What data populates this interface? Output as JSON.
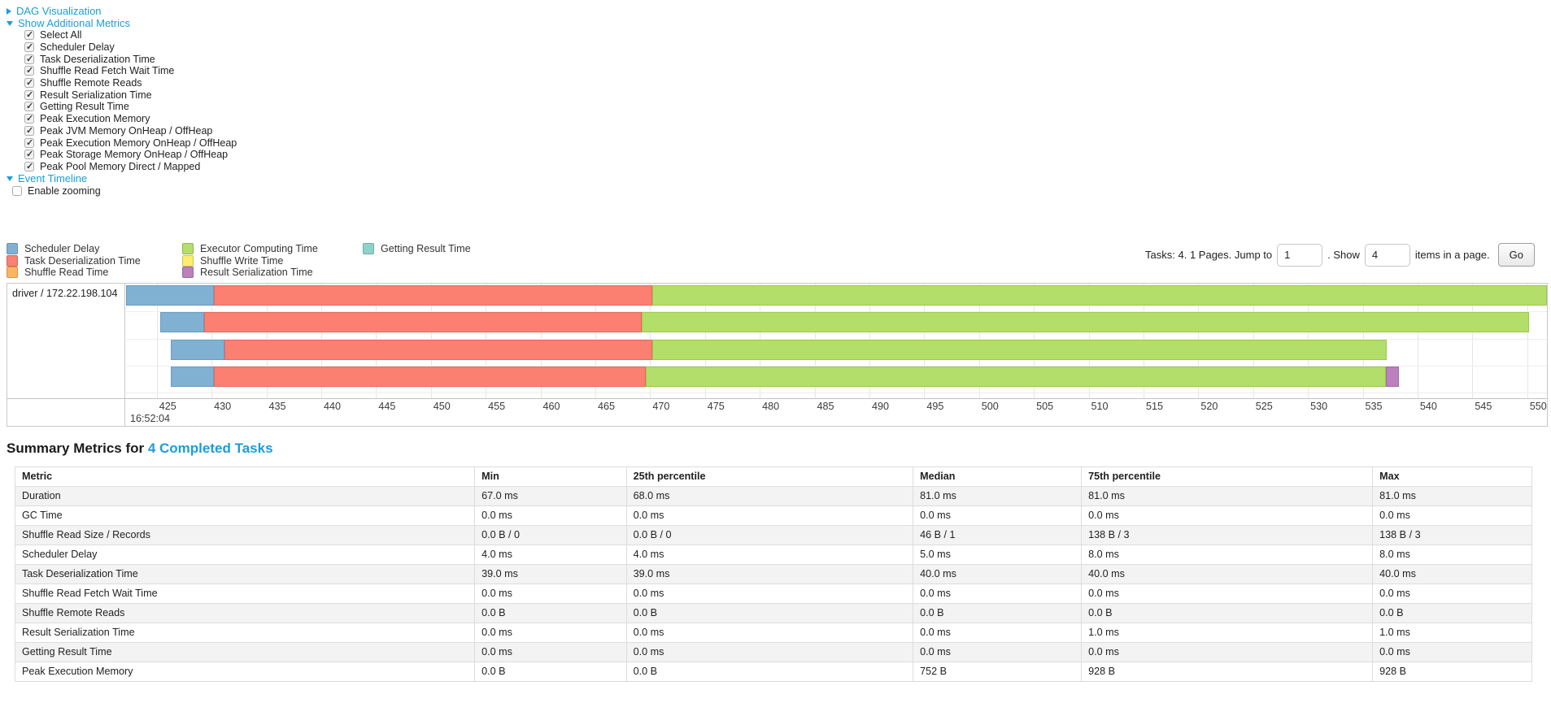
{
  "controls": {
    "dag_visualization": {
      "label": "DAG Visualization",
      "expanded": false
    },
    "show_additional_metrics": {
      "label": "Show Additional Metrics",
      "expanded": true
    },
    "metric_checkboxes": [
      {
        "label": "Select All",
        "checked": true
      },
      {
        "label": "Scheduler Delay",
        "checked": true
      },
      {
        "label": "Task Deserialization Time",
        "checked": true
      },
      {
        "label": "Shuffle Read Fetch Wait Time",
        "checked": true
      },
      {
        "label": "Shuffle Remote Reads",
        "checked": true
      },
      {
        "label": "Result Serialization Time",
        "checked": true
      },
      {
        "label": "Getting Result Time",
        "checked": true
      },
      {
        "label": "Peak Execution Memory",
        "checked": true
      },
      {
        "label": "Peak JVM Memory OnHeap / OffHeap",
        "checked": true
      },
      {
        "label": "Peak Execution Memory OnHeap / OffHeap",
        "checked": true
      },
      {
        "label": "Peak Storage Memory OnHeap / OffHeap",
        "checked": true
      },
      {
        "label": "Peak Pool Memory Direct / Mapped",
        "checked": true
      }
    ],
    "event_timeline": {
      "label": "Event Timeline",
      "expanded": true
    },
    "enable_zooming": {
      "label": "Enable zooming",
      "checked": false
    }
  },
  "legend": {
    "columns": [
      [
        {
          "label": "Scheduler Delay",
          "metric": "scheduler_delay"
        },
        {
          "label": "Task Deserialization Time",
          "metric": "task_deserialization"
        },
        {
          "label": "Shuffle Read Time",
          "metric": "shuffle_read"
        }
      ],
      [
        {
          "label": "Executor Computing Time",
          "metric": "executor_computing"
        },
        {
          "label": "Shuffle Write Time",
          "metric": "shuffle_write"
        },
        {
          "label": "Result Serialization Time",
          "metric": "result_serialization"
        }
      ],
      [
        {
          "label": "Getting Result Time",
          "metric": "getting_result"
        }
      ]
    ]
  },
  "pagination": {
    "tasks_text": "Tasks: 4. 1 Pages. Jump to",
    "jump_value": "1",
    "show_text": ". Show",
    "show_value": "4",
    "items_text": "items in a page.",
    "go_label": "Go"
  },
  "chart_data": {
    "type": "timeline",
    "group_label": "driver / 172.22.198.104",
    "time_label": "16:52:04",
    "axis": {
      "unit": "ms",
      "view_min": 422.2,
      "view_max": 551.8,
      "tick_min": 425,
      "tick_max": 550,
      "tick_step": 5
    },
    "colors": {
      "scheduler_delay": {
        "fill": "#80B1D3",
        "border": "#6A9CC2"
      },
      "task_deserialization": {
        "fill": "#FB8072",
        "border": "#E66A5D"
      },
      "shuffle_read": {
        "fill": "#FDB462",
        "border": "#E89F4C"
      },
      "executor_computing": {
        "fill": "#B3DE69",
        "border": "#9CC94F"
      },
      "shuffle_write": {
        "fill": "#FFED6F",
        "border": "#E3D156"
      },
      "result_serialization": {
        "fill": "#BC80BD",
        "border": "#A569A7"
      },
      "getting_result": {
        "fill": "#8DD3C7",
        "border": "#74BDB0"
      }
    },
    "tasks": [
      {
        "start": 422.2,
        "segments": [
          {
            "metric": "scheduler_delay",
            "end": 430.2
          },
          {
            "metric": "task_deserialization",
            "end": 470.2
          },
          {
            "metric": "executor_computing",
            "end": 551.8
          }
        ]
      },
      {
        "start": 425.3,
        "segments": [
          {
            "metric": "scheduler_delay",
            "end": 429.3
          },
          {
            "metric": "task_deserialization",
            "end": 469.2
          },
          {
            "metric": "executor_computing",
            "end": 550.2
          }
        ]
      },
      {
        "start": 426.3,
        "segments": [
          {
            "metric": "scheduler_delay",
            "end": 431.2
          },
          {
            "metric": "task_deserialization",
            "end": 470.2
          },
          {
            "metric": "executor_computing",
            "end": 537.2
          }
        ]
      },
      {
        "start": 426.3,
        "segments": [
          {
            "metric": "scheduler_delay",
            "end": 430.2
          },
          {
            "metric": "task_deserialization",
            "end": 469.6
          },
          {
            "metric": "executor_computing",
            "end": 537.1
          },
          {
            "metric": "result_serialization",
            "end": 538.3
          }
        ]
      }
    ]
  },
  "summary": {
    "title_prefix": "Summary Metrics for ",
    "title_link": "4 Completed Tasks",
    "table": {
      "headers": [
        "Metric",
        "Min",
        "25th percentile",
        "Median",
        "75th percentile",
        "Max"
      ],
      "col_widths": [
        "30.3%",
        "10.0%",
        "18.9%",
        "11.1%",
        "19.2%",
        "10.5%"
      ],
      "rows": [
        [
          "Duration",
          "67.0 ms",
          "68.0 ms",
          "81.0 ms",
          "81.0 ms",
          "81.0 ms"
        ],
        [
          "GC Time",
          "0.0 ms",
          "0.0 ms",
          "0.0 ms",
          "0.0 ms",
          "0.0 ms"
        ],
        [
          "Shuffle Read Size / Records",
          "0.0 B / 0",
          "0.0 B / 0",
          "46 B / 1",
          "138 B / 3",
          "138 B / 3"
        ],
        [
          "Scheduler Delay",
          "4.0 ms",
          "4.0 ms",
          "5.0 ms",
          "8.0 ms",
          "8.0 ms"
        ],
        [
          "Task Deserialization Time",
          "39.0 ms",
          "39.0 ms",
          "40.0 ms",
          "40.0 ms",
          "40.0 ms"
        ],
        [
          "Shuffle Read Fetch Wait Time",
          "0.0 ms",
          "0.0 ms",
          "0.0 ms",
          "0.0 ms",
          "0.0 ms"
        ],
        [
          "Shuffle Remote Reads",
          "0.0 B",
          "0.0 B",
          "0.0 B",
          "0.0 B",
          "0.0 B"
        ],
        [
          "Result Serialization Time",
          "0.0 ms",
          "0.0 ms",
          "0.0 ms",
          "1.0 ms",
          "1.0 ms"
        ],
        [
          "Getting Result Time",
          "0.0 ms",
          "0.0 ms",
          "0.0 ms",
          "0.0 ms",
          "0.0 ms"
        ],
        [
          "Peak Execution Memory",
          "0.0 B",
          "0.0 B",
          "752 B",
          "928 B",
          "928 B"
        ]
      ]
    }
  }
}
